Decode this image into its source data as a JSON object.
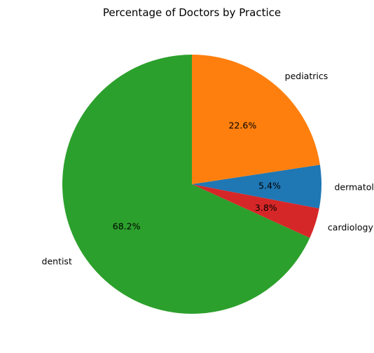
{
  "chart_data": {
    "type": "pie",
    "title": "Percentage of Doctors by Practice",
    "start_angle_deg": 90,
    "direction": "counterclockwise",
    "slices": [
      {
        "label": "dentist",
        "value": 68.2,
        "pct_label": "68.2%",
        "color": "#2ca02c"
      },
      {
        "label": "cardiology",
        "value": 3.8,
        "pct_label": "3.8%",
        "color": "#d62728"
      },
      {
        "label": "dermatology",
        "value": 5.4,
        "pct_label": "5.4%",
        "color": "#1f77b4"
      },
      {
        "label": "pediatrics",
        "value": 22.6,
        "pct_label": "22.6%",
        "color": "#ff7f0e"
      }
    ]
  }
}
